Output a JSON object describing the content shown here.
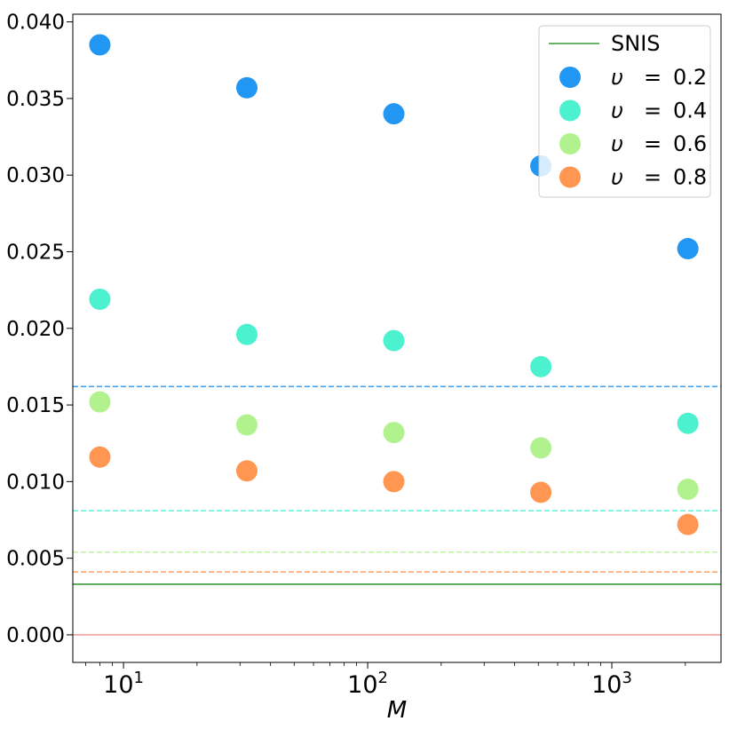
{
  "chart_data": {
    "type": "scatter",
    "title": "",
    "xlabel": "M",
    "ylabel": "",
    "xscale": "log",
    "xlim": [
      6.2,
      2800
    ],
    "ylim": [
      -0.0018,
      0.0405
    ],
    "grid": false,
    "legend_position": "top-right",
    "x": [
      8,
      32,
      128,
      512,
      2048
    ],
    "x_tick_values": [
      10,
      100,
      1000
    ],
    "x_tick_labels": [
      {
        "base": "10",
        "exp": "1"
      },
      {
        "base": "10",
        "exp": "2"
      },
      {
        "base": "10",
        "exp": "3"
      }
    ],
    "y_tick_values": [
      0.0,
      0.005,
      0.01,
      0.015,
      0.02,
      0.025,
      0.03,
      0.035,
      0.04
    ],
    "y_tick_labels": [
      "0.000",
      "0.005",
      "0.010",
      "0.015",
      "0.020",
      "0.025",
      "0.030",
      "0.035",
      "0.040"
    ],
    "series": [
      {
        "name": "υ = 0.2",
        "legend": [
          "υ",
          "=",
          "0.2"
        ],
        "color": "#2196f3",
        "values": [
          0.0385,
          0.0357,
          0.034,
          0.0306,
          0.0252
        ],
        "baseline": 0.0162
      },
      {
        "name": "υ = 0.4",
        "legend": [
          "υ",
          "=",
          "0.4"
        ],
        "color": "#4cf2cf",
        "values": [
          0.0219,
          0.0196,
          0.0192,
          0.0175,
          0.0138
        ],
        "baseline": 0.0081
      },
      {
        "name": "υ = 0.6",
        "legend": [
          "υ",
          "=",
          "0.6"
        ],
        "color": "#b2f28e",
        "values": [
          0.0152,
          0.0137,
          0.0132,
          0.0122,
          0.0095
        ],
        "baseline": 0.0054
      },
      {
        "name": "υ = 0.8",
        "legend": [
          "υ",
          "=",
          "0.8"
        ],
        "color": "#ff9652",
        "values": [
          0.0116,
          0.0107,
          0.01,
          0.0093,
          0.0072
        ],
        "baseline": 0.0041
      }
    ],
    "reference_lines": [
      {
        "name": "SNIS",
        "value": 0.0033,
        "color": "#3a9a3a",
        "in_legend": true
      },
      {
        "name": "zero",
        "value": 0.0,
        "color": "#f0a0a0",
        "in_legend": false
      }
    ]
  }
}
